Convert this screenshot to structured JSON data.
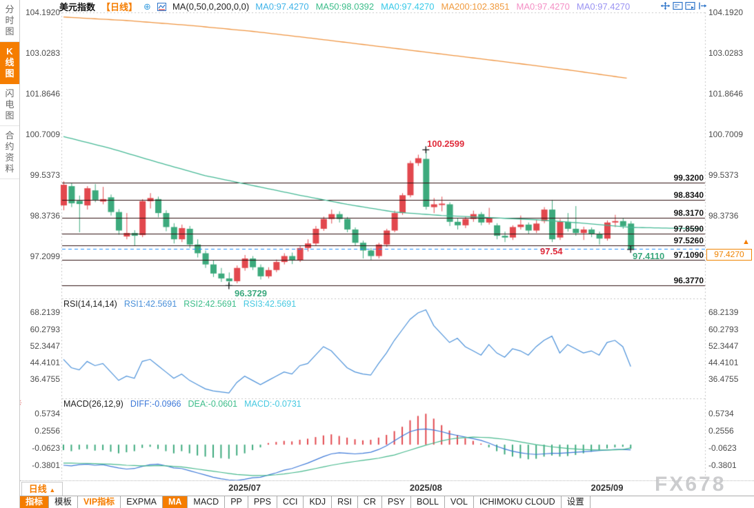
{
  "sidebar": {
    "items": [
      {
        "key": "time-chart",
        "label": "分时图",
        "active": false
      },
      {
        "key": "kline-chart",
        "label": "K线图",
        "active": true
      },
      {
        "key": "flash-chart",
        "label": "闪电图",
        "active": false
      },
      {
        "key": "contract-info",
        "label": "合约资料",
        "active": false
      }
    ]
  },
  "header": {
    "title": "美元指数",
    "period_tag": "【日线】",
    "add_icon": "⊕",
    "ma_settings": "MA(0,50,0,200,0,0)",
    "ma_values": [
      {
        "label": "MA0:97.4270",
        "color": "#3fb3e8"
      },
      {
        "label": "MA50:98.0392",
        "color": "#3dbd8a"
      },
      {
        "label": "MA0:97.4270",
        "color": "#37c9e8"
      },
      {
        "label": "MA200:102.3851",
        "color": "#f09a3e"
      },
      {
        "label": "MA0:97.4270",
        "color": "#f48fc5"
      },
      {
        "label": "MA0:97.4270",
        "color": "#9a93f2"
      }
    ],
    "toolbar_icons": [
      {
        "name": "crosshair-icon"
      },
      {
        "name": "indicator-pane-icon"
      },
      {
        "name": "chart-layout-icon"
      },
      {
        "name": "collapse-right-icon"
      }
    ]
  },
  "main_chart": {
    "left_axis_labels": [
      "104.1920",
      "103.0283",
      "101.8646",
      "100.7009",
      "99.5373",
      "98.3736",
      "97.2099"
    ],
    "right_axis_labels": [
      "104.1920",
      "103.0283",
      "101.8646",
      "100.7009",
      "99.5373",
      "98.3736"
    ],
    "level_labels": [
      "99.3200",
      "98.8340",
      "98.3170",
      "97.8590",
      "97.5260",
      "97.1090",
      "96.3770"
    ],
    "current_price_label": "97.4270",
    "latest_arrow": "▲",
    "annotations": {
      "high": "100.2599",
      "low": "96.3729",
      "alert": "97.54",
      "last_low": "97.4110"
    }
  },
  "rsi_pane": {
    "header": [
      {
        "text": "RSI(14,14,14)",
        "color": "#222222"
      },
      {
        "text": "RSI1:42.5691",
        "color": "#4a90d9"
      },
      {
        "text": "RSI2:42.5691",
        "color": "#3dbd8a"
      },
      {
        "text": "RSI3:42.5691",
        "color": "#45c8e0"
      }
    ],
    "axis_labels": [
      "68.2139",
      "60.2793",
      "52.3447",
      "44.4101",
      "36.4755"
    ]
  },
  "macd_pane": {
    "header": [
      {
        "text": "MACD(26,12,9)",
        "color": "#222222"
      },
      {
        "text": "DIFF:-0.0966",
        "color": "#3c78d8"
      },
      {
        "text": "DEA:-0.0601",
        "color": "#3dbd8a"
      },
      {
        "text": "MACD:-0.0731",
        "color": "#45c8e0"
      }
    ],
    "axis_labels": [
      "0.5734",
      "0.2556",
      "-0.0623",
      "-0.3801"
    ],
    "sun_icon": "☀"
  },
  "timeline": {
    "period_label": "日线",
    "period_arrow": "▲",
    "dates": [
      "2025/07",
      "2025/08",
      "2025/09"
    ],
    "watermark": "FX678"
  },
  "tabs": [
    {
      "key": "indicators",
      "label": "指标",
      "style": "active"
    },
    {
      "key": "templates",
      "label": "模板",
      "style": ""
    },
    {
      "key": "vip-indicators",
      "label": "VIP指标",
      "style": "vip"
    },
    {
      "key": "expma",
      "label": "EXPMA",
      "style": ""
    },
    {
      "key": "ma",
      "label": "MA",
      "style": "active"
    },
    {
      "key": "macd",
      "label": "MACD",
      "style": ""
    },
    {
      "key": "pp",
      "label": "PP",
      "style": ""
    },
    {
      "key": "pps",
      "label": "PPS",
      "style": ""
    },
    {
      "key": "cci",
      "label": "CCI",
      "style": ""
    },
    {
      "key": "kdj",
      "label": "KDJ",
      "style": ""
    },
    {
      "key": "rsi",
      "label": "RSI",
      "style": ""
    },
    {
      "key": "cr",
      "label": "CR",
      "style": ""
    },
    {
      "key": "psy",
      "label": "PSY",
      "style": ""
    },
    {
      "key": "boll",
      "label": "BOLL",
      "style": ""
    },
    {
      "key": "vol",
      "label": "VOL",
      "style": ""
    },
    {
      "key": "ichimoku-cloud",
      "label": "ICHIMOKU CLOUD",
      "style": ""
    },
    {
      "key": "settings",
      "label": "设置",
      "style": ""
    }
  ],
  "colors": {
    "up": "#e2484e",
    "down": "#3daa7d",
    "ma50": "#45b895",
    "ma200": "#ef9440",
    "level_line": "#2f0f0f",
    "dashed_line": "#1f8fff",
    "rsi_line": "#4a90d9",
    "diff_line": "#3c78d8",
    "dea_line": "#45b88c",
    "annotation_red": "#e02b3a",
    "annotation_teal": "#3aa87c",
    "frame_dot": "#c4c4c4",
    "marker": "#111111"
  },
  "chart_data": {
    "type": "candlestick",
    "title": "美元指数 日线",
    "y_ticks_main": [
      104.192,
      103.0283,
      101.8646,
      100.7009,
      99.5373,
      98.3736,
      97.2099
    ],
    "levels": [
      99.32,
      98.834,
      98.317,
      97.859,
      97.526,
      97.109,
      96.377
    ],
    "current_price": 97.427,
    "alert_price": 97.54,
    "high_marker": {
      "index": 46,
      "price": 100.2599
    },
    "low_marker": {
      "index": 21,
      "price": 96.3729
    },
    "last_marker": {
      "index": 72,
      "price": 97.411
    },
    "date_tick_indices": [
      23,
      46,
      69
    ],
    "candles": [
      [
        98.67,
        99.36,
        98.53,
        99.26
      ],
      [
        99.22,
        99.32,
        98.62,
        98.73
      ],
      [
        98.8,
        98.95,
        97.9,
        98.71
      ],
      [
        98.67,
        99.22,
        98.55,
        99.16
      ],
      [
        99.1,
        99.28,
        98.76,
        98.83
      ],
      [
        98.78,
        99.2,
        98.7,
        98.85
      ],
      [
        98.9,
        98.98,
        98.38,
        98.48
      ],
      [
        98.48,
        98.56,
        97.83,
        97.95
      ],
      [
        97.78,
        98.45,
        97.7,
        97.88
      ],
      [
        97.88,
        97.96,
        97.52,
        97.8
      ],
      [
        97.82,
        98.85,
        97.76,
        98.79
      ],
      [
        98.79,
        99.02,
        98.58,
        98.88
      ],
      [
        98.85,
        98.92,
        98.33,
        98.45
      ],
      [
        98.45,
        98.53,
        97.93,
        98.05
      ],
      [
        98.05,
        98.16,
        97.58,
        97.7
      ],
      [
        97.7,
        98.12,
        97.62,
        98.02
      ],
      [
        98.0,
        98.08,
        97.45,
        97.55
      ],
      [
        97.55,
        97.7,
        97.18,
        97.3
      ],
      [
        97.3,
        97.38,
        96.88,
        96.98
      ],
      [
        96.98,
        97.1,
        96.62,
        96.72
      ],
      [
        96.72,
        96.88,
        96.48,
        96.58
      ],
      [
        96.58,
        96.75,
        96.3729,
        96.5
      ],
      [
        96.5,
        96.95,
        96.44,
        96.88
      ],
      [
        96.88,
        97.25,
        96.8,
        97.15
      ],
      [
        97.15,
        97.22,
        96.82,
        96.9
      ],
      [
        96.9,
        96.98,
        96.55,
        96.64
      ],
      [
        96.64,
        96.9,
        96.58,
        96.82
      ],
      [
        96.82,
        97.12,
        96.76,
        97.05
      ],
      [
        97.05,
        97.3,
        96.98,
        97.22
      ],
      [
        97.22,
        97.32,
        96.99,
        97.1
      ],
      [
        97.1,
        97.52,
        97.05,
        97.45
      ],
      [
        97.45,
        97.7,
        97.35,
        97.58
      ],
      [
        97.58,
        98.08,
        97.52,
        98.0
      ],
      [
        98.0,
        98.35,
        97.94,
        98.28
      ],
      [
        98.28,
        98.55,
        98.15,
        98.42
      ],
      [
        98.42,
        98.5,
        98.18,
        98.28
      ],
      [
        98.28,
        98.34,
        97.9,
        97.98
      ],
      [
        97.98,
        98.04,
        97.52,
        97.6
      ],
      [
        97.6,
        97.66,
        97.15,
        97.38
      ],
      [
        97.38,
        97.45,
        97.1,
        97.22
      ],
      [
        97.22,
        97.6,
        97.15,
        97.55
      ],
      [
        97.55,
        98.0,
        97.48,
        97.95
      ],
      [
        97.95,
        98.52,
        97.9,
        98.45
      ],
      [
        98.45,
        99.02,
        98.4,
        98.96
      ],
      [
        98.96,
        99.95,
        98.9,
        99.88
      ],
      [
        99.88,
        100.12,
        99.8,
        100.02
      ],
      [
        100.0,
        100.2599,
        98.55,
        98.63
      ],
      [
        98.62,
        98.88,
        98.45,
        98.7
      ],
      [
        98.68,
        98.92,
        98.5,
        98.72
      ],
      [
        98.7,
        98.76,
        98.08,
        98.2
      ],
      [
        98.2,
        98.3,
        97.98,
        98.1
      ],
      [
        98.1,
        98.35,
        98.02,
        98.28
      ],
      [
        98.28,
        98.52,
        98.2,
        98.42
      ],
      [
        98.42,
        98.48,
        98.1,
        98.18
      ],
      [
        98.18,
        98.6,
        98.12,
        98.3
      ],
      [
        98.1,
        98.16,
        97.7,
        97.8
      ],
      [
        97.8,
        97.92,
        97.62,
        97.75
      ],
      [
        97.75,
        98.1,
        97.68,
        98.05
      ],
      [
        98.05,
        98.38,
        97.98,
        98.12
      ],
      [
        98.12,
        98.18,
        97.85,
        97.95
      ],
      [
        97.95,
        98.25,
        97.88,
        98.15
      ],
      [
        98.22,
        98.62,
        98.16,
        98.55
      ],
      [
        98.55,
        98.83,
        97.62,
        97.7
      ],
      [
        97.75,
        98.28,
        97.68,
        98.2
      ],
      [
        98.2,
        98.45,
        97.92,
        98.0
      ],
      [
        98.0,
        98.65,
        97.8,
        97.88
      ],
      [
        97.88,
        98.06,
        97.68,
        97.98
      ],
      [
        97.98,
        98.04,
        97.76,
        97.85
      ],
      [
        97.85,
        97.92,
        97.55,
        97.72
      ],
      [
        97.72,
        98.24,
        97.66,
        98.18
      ],
      [
        98.18,
        98.4,
        98.05,
        98.22
      ],
      [
        98.22,
        98.3,
        98.0,
        98.08
      ],
      [
        98.15,
        98.22,
        97.411,
        97.427
      ]
    ],
    "ma50_anchors": [
      [
        0,
        100.64
      ],
      [
        6,
        100.3
      ],
      [
        12,
        99.9
      ],
      [
        18,
        99.52
      ],
      [
        24,
        99.24
      ],
      [
        30,
        98.96
      ],
      [
        36,
        98.7
      ],
      [
        42,
        98.48
      ],
      [
        48,
        98.38
      ],
      [
        54,
        98.32
      ],
      [
        60,
        98.26
      ],
      [
        66,
        98.16
      ],
      [
        72,
        98.04
      ],
      [
        81,
        98.0
      ]
    ],
    "ma200_anchors": [
      [
        0,
        104.06
      ],
      [
        8,
        103.96
      ],
      [
        16,
        103.82
      ],
      [
        24,
        103.65
      ],
      [
        32,
        103.44
      ],
      [
        40,
        103.22
      ],
      [
        48,
        103.0
      ],
      [
        56,
        102.78
      ],
      [
        64,
        102.55
      ],
      [
        71.8,
        102.3
      ]
    ],
    "rsi": {
      "y_ticks": [
        68.2139,
        60.2793,
        52.3447,
        44.4101,
        36.4755
      ],
      "values": [
        46,
        42,
        41,
        45,
        43,
        44,
        40,
        36,
        38,
        37,
        45,
        46,
        43,
        40,
        37,
        39,
        36,
        34,
        32,
        31,
        30.5,
        30,
        35,
        38,
        36,
        34,
        36,
        38,
        40,
        39,
        43,
        44,
        48,
        52,
        50,
        46,
        42,
        40,
        39,
        38.5,
        44,
        49,
        55,
        60,
        65,
        68,
        69.5,
        62,
        58,
        54,
        56,
        52,
        50,
        48,
        53,
        49,
        47,
        51,
        50,
        48,
        52,
        55,
        57,
        49,
        53,
        51,
        49,
        50,
        48,
        54,
        55,
        52,
        42.5691
      ]
    },
    "macd": {
      "y_ticks": [
        0.5734,
        0.2556,
        -0.0623,
        -0.3801
      ],
      "diff": [
        -0.38,
        -0.39,
        -0.37,
        -0.36,
        -0.38,
        -0.37,
        -0.4,
        -0.43,
        -0.45,
        -0.44,
        -0.4,
        -0.37,
        -0.36,
        -0.39,
        -0.43,
        -0.44,
        -0.48,
        -0.52,
        -0.56,
        -0.6,
        -0.63,
        -0.65,
        -0.66,
        -0.64,
        -0.61,
        -0.6,
        -0.56,
        -0.52,
        -0.47,
        -0.44,
        -0.39,
        -0.34,
        -0.28,
        -0.22,
        -0.17,
        -0.15,
        -0.16,
        -0.17,
        -0.16,
        -0.14,
        -0.09,
        -0.02,
        0.07,
        0.16,
        0.24,
        0.28,
        0.29,
        0.27,
        0.24,
        0.2,
        0.17,
        0.14,
        0.11,
        0.08,
        0.03,
        -0.03,
        -0.08,
        -0.12,
        -0.15,
        -0.17,
        -0.18,
        -0.17,
        -0.16,
        -0.16,
        -0.15,
        -0.14,
        -0.13,
        -0.12,
        -0.11,
        -0.1,
        -0.09,
        -0.09,
        -0.0966
      ],
      "dea": [
        -0.34,
        -0.34,
        -0.345,
        -0.345,
        -0.35,
        -0.355,
        -0.36,
        -0.37,
        -0.38,
        -0.385,
        -0.39,
        -0.39,
        -0.385,
        -0.39,
        -0.4,
        -0.41,
        -0.43,
        -0.45,
        -0.47,
        -0.49,
        -0.51,
        -0.53,
        -0.55,
        -0.56,
        -0.57,
        -0.57,
        -0.565,
        -0.555,
        -0.54,
        -0.52,
        -0.5,
        -0.47,
        -0.44,
        -0.41,
        -0.38,
        -0.355,
        -0.33,
        -0.31,
        -0.29,
        -0.27,
        -0.25,
        -0.22,
        -0.19,
        -0.145,
        -0.1,
        -0.055,
        -0.01,
        0.03,
        0.07,
        0.1,
        0.12,
        0.13,
        0.14,
        0.135,
        0.13,
        0.115,
        0.1,
        0.075,
        0.05,
        0.025,
        0.0,
        -0.02,
        -0.04,
        -0.055,
        -0.07,
        -0.08,
        -0.09,
        -0.095,
        -0.1,
        -0.1,
        -0.095,
        -0.09,
        -0.0601
      ],
      "hist": [
        -0.1,
        -0.12,
        -0.09,
        -0.08,
        -0.11,
        -0.1,
        -0.13,
        -0.16,
        -0.14,
        -0.12,
        -0.06,
        -0.04,
        -0.08,
        -0.12,
        -0.16,
        -0.12,
        -0.16,
        -0.2,
        -0.22,
        -0.24,
        -0.25,
        -0.26,
        -0.2,
        -0.16,
        -0.1,
        -0.05,
        0.03,
        0.05,
        0.07,
        0.06,
        0.09,
        0.11,
        0.14,
        0.17,
        0.19,
        0.16,
        0.13,
        0.1,
        0.08,
        0.09,
        0.13,
        0.18,
        0.25,
        0.33,
        0.45,
        0.53,
        0.57,
        0.48,
        0.36,
        0.26,
        0.18,
        0.12,
        0.07,
        0.02,
        -0.05,
        -0.12,
        -0.18,
        -0.22,
        -0.25,
        -0.27,
        -0.26,
        -0.22,
        -0.2,
        -0.22,
        -0.21,
        -0.19,
        -0.16,
        -0.13,
        -0.11,
        -0.07,
        -0.05,
        -0.04,
        -0.0731
      ]
    }
  }
}
